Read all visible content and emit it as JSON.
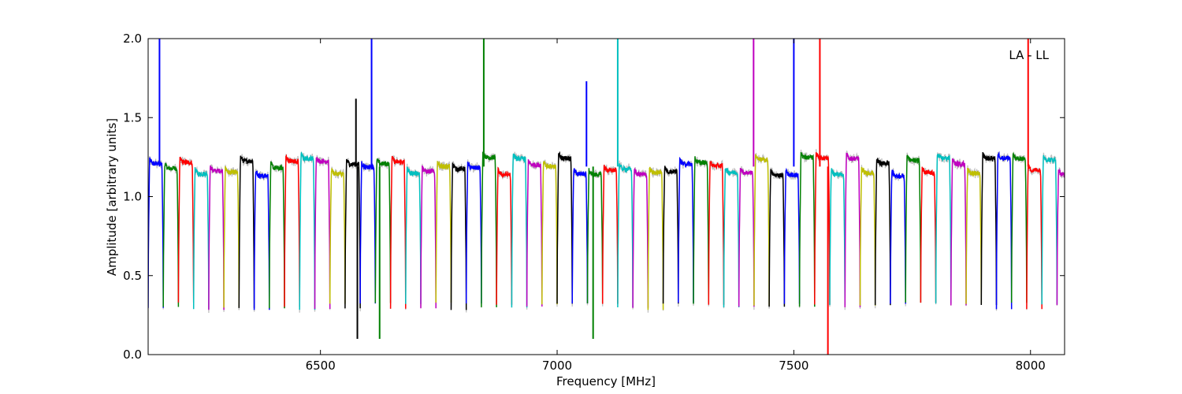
{
  "chart_data": {
    "type": "line",
    "title": "",
    "xlabel": "Frequency [MHz]",
    "ylabel": "Amplitude [arbitrary units]",
    "xlim": [
      6136,
      8072
    ],
    "ylim": [
      0.0,
      2.0
    ],
    "xticks": [
      6500,
      7000,
      7500,
      8000
    ],
    "xtick_labels": [
      "6500",
      "7000",
      "7500",
      "8000"
    ],
    "yticks": [
      0.0,
      0.5,
      1.0,
      1.5,
      2.0
    ],
    "ytick_labels": [
      "0.0",
      "0.5",
      "1.0",
      "1.5",
      "2.0"
    ],
    "grid": false,
    "annotation": "LA - LL",
    "background_color": "#c0c0c0",
    "colors": [
      "#0000ff",
      "#008000",
      "#ff0000",
      "#00bfbf",
      "#bf00bf",
      "#bfbf00",
      "#000000"
    ],
    "channel_spacing_mhz": 32,
    "channel_start_mhz": 6152,
    "typical_flat_level": 1.19,
    "typical_edge_min": 0.28,
    "spikes": [
      {
        "x": 6160,
        "y": 2.0
      },
      {
        "x": 6575,
        "y": 1.62
      },
      {
        "x": 6578,
        "y": 0.1
      },
      {
        "x": 6608,
        "y": 2.0
      },
      {
        "x": 6625,
        "y": 0.1
      },
      {
        "x": 6845,
        "y": 2.0
      },
      {
        "x": 7062,
        "y": 1.73
      },
      {
        "x": 7076,
        "y": 0.1
      },
      {
        "x": 7128,
        "y": 2.0
      },
      {
        "x": 7415,
        "y": 2.0
      },
      {
        "x": 7500,
        "y": 2.0
      },
      {
        "x": 7555,
        "y": 2.0
      },
      {
        "x": 7572,
        "y": 0.0
      },
      {
        "x": 7995,
        "y": 2.0
      }
    ]
  }
}
